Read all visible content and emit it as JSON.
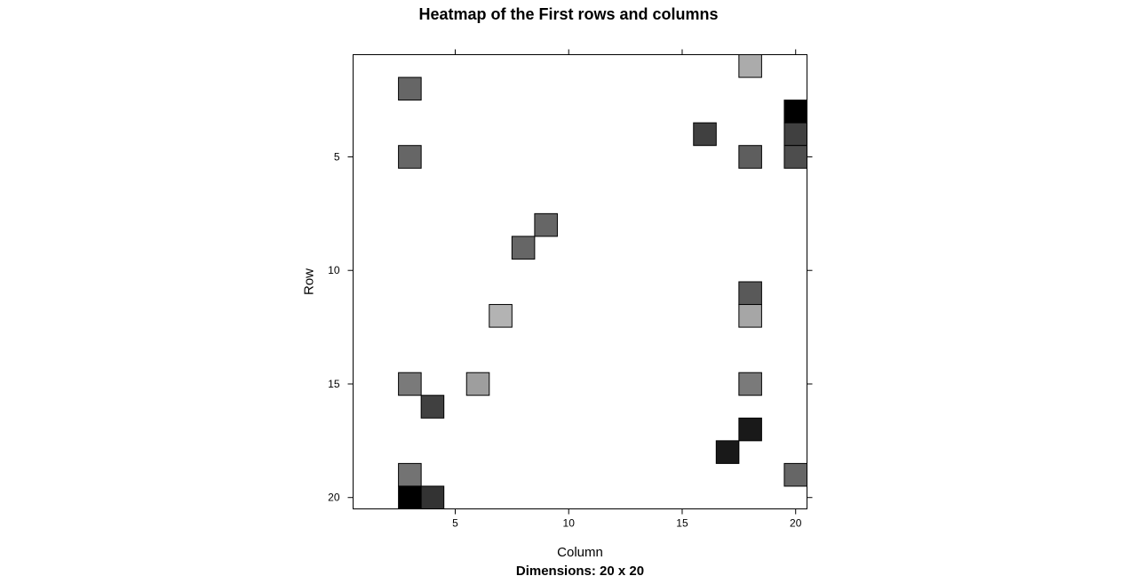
{
  "chart_data": {
    "type": "heatmap",
    "title": "Heatmap of the First rows and columns",
    "xlabel": "Column",
    "ylabel": "Row",
    "subtitle": "Dimensions: 20 x 20",
    "xlim": [
      0.5,
      20.5
    ],
    "ylim": [
      0.5,
      20.5
    ],
    "y_reversed": true,
    "x_ticks": [
      "5",
      "10",
      "15",
      "20"
    ],
    "y_ticks": [
      "5",
      "10",
      "15",
      "20"
    ],
    "x_tick_values": [
      5,
      10,
      15,
      20
    ],
    "y_tick_values": [
      5,
      10,
      15,
      20
    ],
    "grid": false,
    "colorscale": "grayscale (darker = higher)",
    "cells": [
      {
        "row": 1,
        "col": 18,
        "value": 0.33
      },
      {
        "row": 2,
        "col": 3,
        "value": 0.6
      },
      {
        "row": 3,
        "col": 20,
        "value": 1.0
      },
      {
        "row": 4,
        "col": 16,
        "value": 0.75
      },
      {
        "row": 4,
        "col": 20,
        "value": 0.75
      },
      {
        "row": 5,
        "col": 3,
        "value": 0.6
      },
      {
        "row": 5,
        "col": 18,
        "value": 0.63
      },
      {
        "row": 5,
        "col": 20,
        "value": 0.7
      },
      {
        "row": 8,
        "col": 9,
        "value": 0.6
      },
      {
        "row": 9,
        "col": 8,
        "value": 0.6
      },
      {
        "row": 11,
        "col": 18,
        "value": 0.65
      },
      {
        "row": 12,
        "col": 7,
        "value": 0.3
      },
      {
        "row": 12,
        "col": 18,
        "value": 0.35
      },
      {
        "row": 15,
        "col": 3,
        "value": 0.52
      },
      {
        "row": 15,
        "col": 6,
        "value": 0.38
      },
      {
        "row": 15,
        "col": 18,
        "value": 0.52
      },
      {
        "row": 16,
        "col": 4,
        "value": 0.75
      },
      {
        "row": 17,
        "col": 18,
        "value": 0.9
      },
      {
        "row": 18,
        "col": 17,
        "value": 0.9
      },
      {
        "row": 19,
        "col": 3,
        "value": 0.55
      },
      {
        "row": 19,
        "col": 20,
        "value": 0.6
      },
      {
        "row": 20,
        "col": 3,
        "value": 1.0
      },
      {
        "row": 20,
        "col": 4,
        "value": 0.8
      }
    ]
  }
}
